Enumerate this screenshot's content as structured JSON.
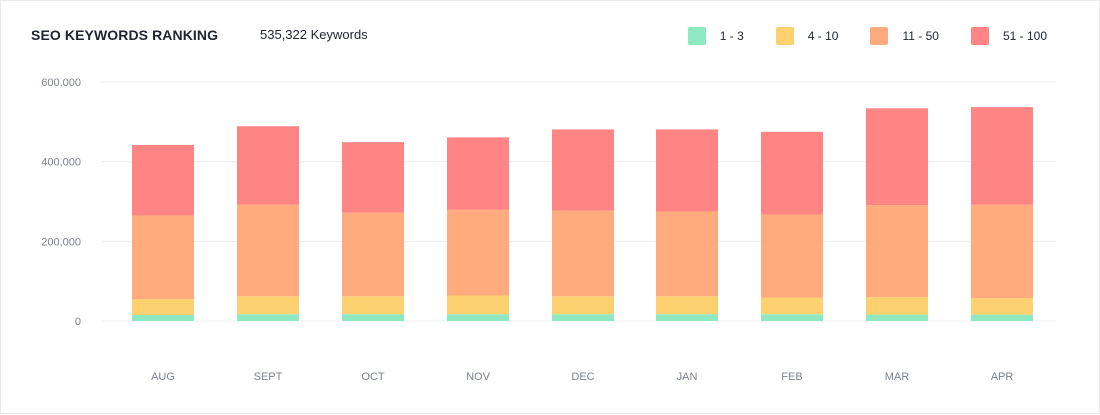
{
  "header": {
    "title": "SEO KEYWORDS RANKING",
    "subtitle": "535,322 Keywords"
  },
  "legend": [
    {
      "label": "1 - 3",
      "color": "#8ee8c0"
    },
    {
      "label": "4 - 10",
      "color": "#fdd170"
    },
    {
      "label": "11 - 50",
      "color": "#ffab7d"
    },
    {
      "label": "51 - 100",
      "color": "#ff8484"
    }
  ],
  "chart_data": {
    "type": "bar",
    "stacked": true,
    "title": "SEO KEYWORDS RANKING",
    "categories": [
      "AUG",
      "SEPT",
      "OCT",
      "NOV",
      "DEC",
      "JAN",
      "FEB",
      "MAR",
      "APR"
    ],
    "series": [
      {
        "name": "1 - 3",
        "color": "#8ee8c0",
        "values": [
          15000,
          17000,
          17000,
          17000,
          17000,
          17000,
          17000,
          16000,
          16000
        ]
      },
      {
        "name": "4 - 10",
        "color": "#fdd170",
        "values": [
          40000,
          45000,
          45000,
          47000,
          45000,
          45000,
          42000,
          44000,
          41000
        ]
      },
      {
        "name": "11 - 50",
        "color": "#ffab7d",
        "values": [
          210000,
          230000,
          210000,
          215000,
          215000,
          213000,
          208000,
          231000,
          235000
        ]
      },
      {
        "name": "51 - 100",
        "color": "#ff8484",
        "values": [
          177000,
          197000,
          177000,
          182000,
          204000,
          206000,
          208000,
          243000,
          245000
        ]
      }
    ],
    "xlabel": "",
    "ylabel": "",
    "ylim": [
      0,
      600000
    ],
    "yticks": [
      0,
      200000,
      400000,
      600000
    ],
    "ytick_labels": [
      "0",
      "200,000",
      "400,000",
      "600,000"
    ],
    "grid": true,
    "legend_position": "top-right"
  }
}
